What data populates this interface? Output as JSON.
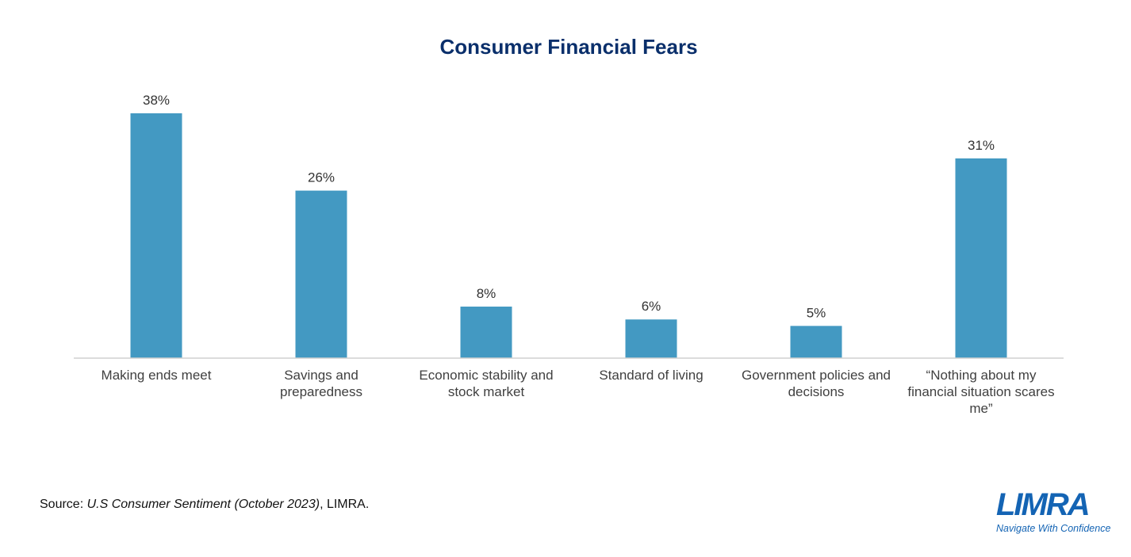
{
  "chart_data": {
    "type": "bar",
    "title": "Consumer Financial Fears",
    "categories": [
      [
        "Making ends meet"
      ],
      [
        "Savings and",
        "preparedness"
      ],
      [
        "Economic stability and",
        "stock market"
      ],
      [
        "Standard of living"
      ],
      [
        "Government policies and",
        "decisions"
      ],
      [
        "“Nothing about my",
        "financial situation scares",
        "me”"
      ]
    ],
    "values": [
      38,
      26,
      8,
      6,
      5,
      31
    ],
    "value_labels": [
      "38%",
      "26%",
      "8%",
      "6%",
      "5%",
      "31%"
    ],
    "ylim": [
      0,
      38
    ],
    "bar_color": "#4399c2",
    "grid": false,
    "xlabel": "",
    "ylabel": ""
  },
  "source": {
    "prefix": "Source: ",
    "title": "U.S Consumer Sentiment (October 2023)",
    "suffix": ", LIMRA."
  },
  "logo": {
    "wordmark": "LIMRA",
    "tagline": "Navigate With Confidence"
  }
}
